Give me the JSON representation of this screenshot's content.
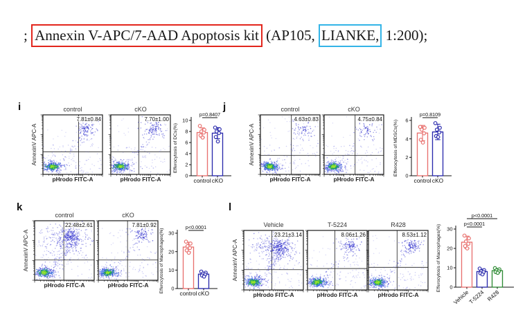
{
  "caption": {
    "prefix": "; ",
    "red_boxed": "Annexin V-APC/7-AAD Apoptosis kit",
    "middle": " (AP105, ",
    "blue_boxed": "LIANKE,",
    "suffix": " 1:200);",
    "red_box_color": "#e2251c",
    "blue_box_color": "#33b4e7"
  },
  "flow_axis_labels": {
    "x": "pHrodo FITC-A",
    "y": "AnnexinV APC-A"
  },
  "panels": [
    {
      "id": "i",
      "label": "i",
      "flow_plots": [
        {
          "title": "control",
          "gate_value": "7.81±0.84",
          "percent": 7.81,
          "qx": 0.6,
          "qy": 0.62
        },
        {
          "title": "cKO",
          "gate_value": "7.70±1.00",
          "percent": 7.7,
          "qx": 0.47,
          "qy": 0.62
        }
      ]
    },
    {
      "id": "j",
      "label": "j",
      "flow_plots": [
        {
          "title": "control",
          "gate_value": "4.63±0.83",
          "percent": 4.63,
          "qx": 0.52,
          "qy": 0.68
        },
        {
          "title": "cKO",
          "gate_value": "4.75±0.84",
          "percent": 4.75,
          "qx": 0.52,
          "qy": 0.68
        }
      ]
    },
    {
      "id": "k",
      "label": "k",
      "flow_plots": [
        {
          "title": "control",
          "gate_value": "22.48±2.61",
          "percent": 22.48,
          "qx": 0.49,
          "qy": 0.66
        },
        {
          "title": "cKO",
          "gate_value": "7.81±0.92",
          "percent": 7.81,
          "qx": 0.49,
          "qy": 0.66
        }
      ]
    },
    {
      "id": "l",
      "label": "l",
      "flow_plots": [
        {
          "title": "Vehicle",
          "gate_value": "23.21±3.14",
          "percent": 23.21,
          "qx": 0.47,
          "qy": 0.66
        },
        {
          "title": "T-5224",
          "gate_value": "8.06±1.26",
          "percent": 8.06,
          "qx": 0.46,
          "qy": 0.64
        },
        {
          "title": "R428",
          "gate_value": "8.53±1.12",
          "percent": 8.53,
          "qx": 0.48,
          "qy": 0.62
        }
      ]
    }
  ],
  "chart_data": [
    {
      "panel": "i",
      "type": "bar",
      "ylabel": "Efferocytosis of DCs(%)",
      "ylim": [
        0,
        10
      ],
      "yticks": [
        0,
        2,
        4,
        6,
        8,
        10
      ],
      "categories": [
        "control",
        "cKO"
      ],
      "bars": [
        {
          "name": "control",
          "mean": 7.81,
          "sd": 0.84,
          "points": [
            9.0,
            8.3,
            8.0,
            7.8,
            7.3,
            6.9
          ],
          "color": "#e8706e"
        },
        {
          "name": "cKO",
          "mean": 7.7,
          "sd": 1.0,
          "points": [
            8.7,
            8.4,
            8.0,
            7.7,
            7.0,
            6.2
          ],
          "color": "#2a2aad"
        }
      ],
      "annotations": [
        {
          "text": "p=0.8407",
          "between": [
            0,
            1
          ]
        }
      ],
      "rotate_xlabels": false
    },
    {
      "panel": "j",
      "type": "bar",
      "ylabel": "Efferocytosis of MDSCs(%)",
      "ylim": [
        0,
        6
      ],
      "yticks": [
        0,
        2,
        4,
        6
      ],
      "categories": [
        "control",
        "cKO"
      ],
      "bars": [
        {
          "name": "control",
          "mean": 4.63,
          "sd": 0.83,
          "points": [
            5.3,
            5.2,
            5.0,
            4.6,
            3.9,
            3.6
          ],
          "color": "#e8706e"
        },
        {
          "name": "cKO",
          "mean": 4.75,
          "sd": 0.84,
          "points": [
            5.7,
            5.2,
            5.0,
            4.7,
            4.3,
            4.2
          ],
          "color": "#2a2aad"
        }
      ],
      "annotations": [
        {
          "text": "p=0.8109",
          "between": [
            0,
            1
          ]
        }
      ],
      "rotate_xlabels": false
    },
    {
      "panel": "k",
      "type": "bar",
      "ylabel": "Efferocytosis of Macrophages(%)",
      "ylim": [
        0,
        30
      ],
      "yticks": [
        0,
        10,
        20,
        30
      ],
      "categories": [
        "control",
        "cKO"
      ],
      "bars": [
        {
          "name": "control",
          "mean": 22.48,
          "sd": 2.61,
          "points": [
            25.4,
            24.4,
            23.0,
            22.0,
            20.7,
            19.4
          ],
          "color": "#e8706e"
        },
        {
          "name": "cKO",
          "mean": 7.81,
          "sd": 0.92,
          "points": [
            9.2,
            8.6,
            8.1,
            7.6,
            7.1,
            6.5
          ],
          "color": "#2a2aad"
        }
      ],
      "annotations": [
        {
          "text": "p<0.0001",
          "between": [
            0,
            1
          ]
        }
      ],
      "rotate_xlabels": false
    },
    {
      "panel": "l",
      "type": "bar",
      "ylabel": "Efferocytosis of Macrophages(%)",
      "ylim": [
        0,
        30
      ],
      "yticks": [
        0,
        10,
        20,
        30
      ],
      "categories": [
        "Vehicle",
        "T-5224",
        "R428"
      ],
      "bars": [
        {
          "name": "Vehicle",
          "mean": 23.21,
          "sd": 3.14,
          "points": [
            26.6,
            25.2,
            23.6,
            22.4,
            21.2,
            20.0
          ],
          "color": "#e8706e"
        },
        {
          "name": "T-5224",
          "mean": 8.06,
          "sd": 1.26,
          "points": [
            9.6,
            8.8,
            8.2,
            7.8,
            7.2,
            6.6
          ],
          "color": "#2a2aad"
        },
        {
          "name": "R428",
          "mean": 8.53,
          "sd": 1.12,
          "points": [
            9.8,
            9.2,
            8.7,
            8.2,
            7.8,
            7.4
          ],
          "color": "#2e8b34"
        }
      ],
      "annotations": [
        {
          "text": "p<0.0001",
          "between": [
            0,
            1
          ]
        },
        {
          "text": "p<0.0001",
          "between": [
            0,
            2
          ]
        }
      ],
      "rotate_xlabels": true
    }
  ]
}
